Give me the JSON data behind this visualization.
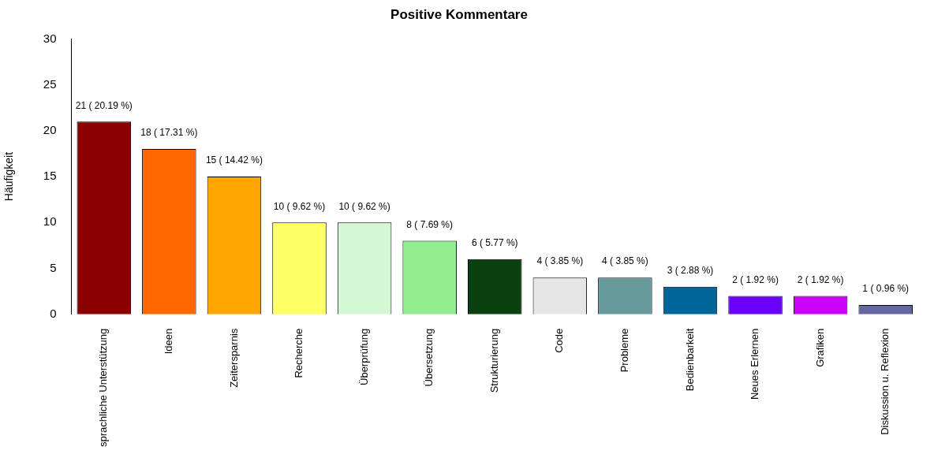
{
  "chart_data": {
    "type": "bar",
    "title": "Positive Kommentare",
    "ylabel": "Häufigkeit",
    "categories": [
      "sprachliche Unterstützung",
      "Ideen",
      "Zeitersparnis",
      "Recherche",
      "Überprüfung",
      "Übersetzung",
      "Strukturierung",
      "Code",
      "Probleme",
      "Bedienbarkeit",
      "Neues Erlernen",
      "Grafiken",
      "Diskussion u. Reflexion"
    ],
    "values": [
      21,
      18,
      15,
      10,
      10,
      8,
      6,
      4,
      4,
      3,
      2,
      2,
      1
    ],
    "colors": [
      "#8b0000",
      "#ff6600",
      "#ffa500",
      "#ffff66",
      "#d4f7d4",
      "#90ee90",
      "#0b4010",
      "#e5e5e5",
      "#669999",
      "#006699",
      "#6a00ff",
      "#cc00ff",
      "#6666a3"
    ],
    "value_labels": [
      "21 ( 20.19 %)",
      "18 ( 17.31 %)",
      "15 ( 14.42 %)",
      "10 ( 9.62 %)",
      "10 ( 9.62 %)",
      "8 ( 7.69 %)",
      "6 ( 5.77 %)",
      "4 ( 3.85 %)",
      "4 ( 3.85 %)",
      "3 ( 2.88 %)",
      "2 ( 1.92 %)",
      "2 ( 1.92 %)",
      "1 ( 0.96 %)"
    ],
    "ylim": [
      0,
      30
    ],
    "yticks": [
      0,
      5,
      10,
      15,
      20,
      25,
      30
    ],
    "grid": false,
    "legend": false
  }
}
